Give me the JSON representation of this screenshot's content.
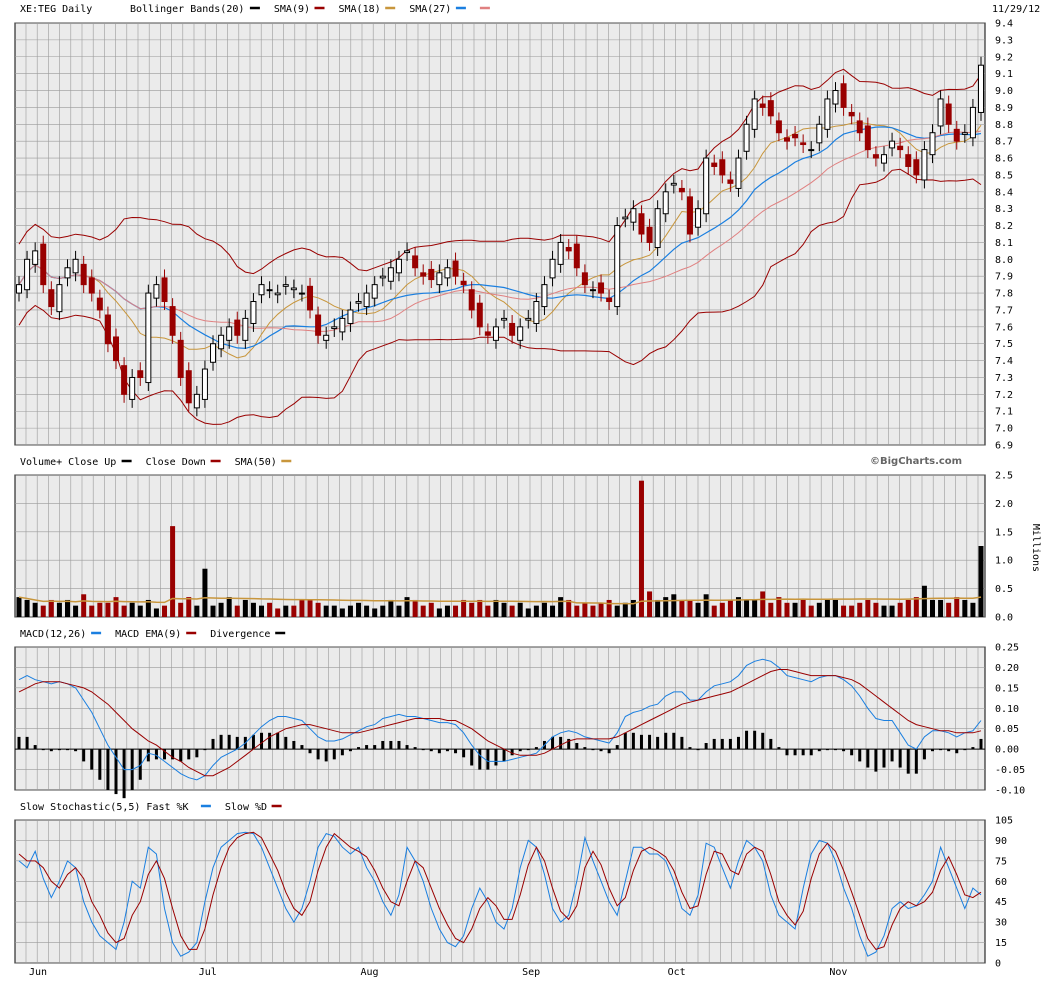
{
  "header": {
    "symbol": "XE:TEG Daily",
    "date": "11/29/12",
    "legend": [
      {
        "label": "Bollinger Bands(20)",
        "color": "#000000"
      },
      {
        "label": "SMA(9)",
        "color": "#990000"
      },
      {
        "label": "SMA(18)",
        "color": "#c8963c"
      },
      {
        "label": "SMA(27)",
        "color": "#1a7fe0"
      },
      {
        "label": "",
        "color": "#e08080"
      }
    ]
  },
  "volume_legend": [
    {
      "label": "Volume+ Close Up",
      "color": "#000000"
    },
    {
      "label": "Close Down",
      "color": "#990000"
    },
    {
      "label": "SMA(50)",
      "color": "#c8963c"
    }
  ],
  "macd_legend": [
    {
      "label": "MACD(12,26)",
      "color": "#1a7fe0"
    },
    {
      "label": "MACD EMA(9)",
      "color": "#990000"
    },
    {
      "label": "Divergence",
      "color": "#000000"
    }
  ],
  "stoch_legend": [
    {
      "label": "Slow Stochastic(5,5)  Fast %K",
      "color": "#1a7fe0"
    },
    {
      "label": "Slow %D",
      "color": "#990000"
    }
  ],
  "watermark": "©BigCharts.com",
  "volume_unit": "Millions",
  "colors": {
    "up": "#000000",
    "down": "#990000",
    "grid": "#9a9a9a",
    "bg": "#ebebeb",
    "band": "#990000",
    "sma9": "#990000",
    "sma18": "#c8963c",
    "sma27": "#1a7fe0",
    "sma4": "#e08080"
  },
  "chart_data": [
    {
      "type": "candlestick",
      "title": "XE:TEG Daily",
      "x_tick_labels": [
        "Jun",
        "Jul",
        "Aug",
        "Sep",
        "Oct",
        "Nov"
      ],
      "x_tick_days": [
        0,
        21,
        41,
        61,
        79,
        99
      ],
      "ylim": [
        6.9,
        9.4
      ],
      "y_ticks": [
        6.9,
        7.0,
        7.1,
        7.2,
        7.3,
        7.4,
        7.5,
        7.6,
        7.7,
        7.8,
        7.9,
        8.0,
        8.1,
        8.2,
        8.3,
        8.4,
        8.5,
        8.6,
        8.7,
        8.8,
        8.9,
        9.0,
        9.1,
        9.2,
        9.3,
        9.4
      ],
      "close": [
        7.85,
        8.0,
        8.05,
        7.85,
        7.72,
        7.85,
        7.95,
        8.0,
        7.85,
        7.8,
        7.7,
        7.5,
        7.4,
        7.2,
        7.3,
        7.3,
        7.8,
        7.85,
        7.75,
        7.55,
        7.3,
        7.15,
        7.2,
        7.35,
        7.5,
        7.55,
        7.6,
        7.55,
        7.65,
        7.75,
        7.85,
        7.82,
        7.8,
        7.85,
        7.83,
        7.8,
        7.7,
        7.55,
        7.55,
        7.6,
        7.65,
        7.7,
        7.75,
        7.8,
        7.85,
        7.9,
        7.95,
        8.0,
        8.05,
        7.95,
        7.9,
        7.88,
        7.92,
        7.95,
        7.9,
        7.85,
        7.7,
        7.6,
        7.55,
        7.6,
        7.65,
        7.55,
        7.6,
        7.65,
        7.75,
        7.85,
        8.0,
        8.1,
        8.05,
        7.95,
        7.85,
        7.82,
        7.8,
        7.75,
        8.2,
        8.25,
        8.3,
        8.15,
        8.1,
        8.3,
        8.4,
        8.45,
        8.4,
        8.15,
        8.3,
        8.6,
        8.55,
        8.5,
        8.45,
        8.6,
        8.8,
        8.95,
        8.9,
        8.85,
        8.75,
        8.7,
        8.72,
        8.68,
        8.65,
        8.8,
        8.95,
        9.0,
        8.9,
        8.85,
        8.75,
        8.65,
        8.6,
        8.62,
        8.7,
        8.65,
        8.55,
        8.5,
        8.65,
        8.75,
        8.95,
        8.8,
        8.7,
        8.75,
        8.9,
        9.15
      ],
      "bollinger_upper_range": [
        8.1,
        9.1
      ],
      "bollinger_lower_range": [
        7.0,
        8.45
      ]
    },
    {
      "type": "bar",
      "title": "Volume",
      "ylabel": "Millions",
      "ylim": [
        0,
        2.5
      ],
      "y_ticks": [
        0.0,
        0.5,
        1.0,
        1.5,
        2.0,
        2.5
      ],
      "volume": [
        0.35,
        0.3,
        0.25,
        0.2,
        0.3,
        0.25,
        0.3,
        0.2,
        0.4,
        0.2,
        0.25,
        0.25,
        0.35,
        0.2,
        0.25,
        0.2,
        0.3,
        0.15,
        0.2,
        1.6,
        0.25,
        0.35,
        0.2,
        0.85,
        0.2,
        0.25,
        0.35,
        0.2,
        0.3,
        0.25,
        0.2,
        0.25,
        0.15,
        0.2,
        0.2,
        0.3,
        0.3,
        0.25,
        0.2,
        0.2,
        0.15,
        0.2,
        0.25,
        0.2,
        0.15,
        0.2,
        0.3,
        0.2,
        0.35,
        0.3,
        0.2,
        0.25,
        0.15,
        0.2,
        0.2,
        0.3,
        0.25,
        0.3,
        0.2,
        0.3,
        0.25,
        0.2,
        0.25,
        0.15,
        0.2,
        0.25,
        0.2,
        0.35,
        0.3,
        0.2,
        0.25,
        0.2,
        0.25,
        0.3,
        0.2,
        0.25,
        0.3,
        2.4,
        0.45,
        0.3,
        0.35,
        0.4,
        0.3,
        0.3,
        0.25,
        0.4,
        0.2,
        0.25,
        0.3,
        0.35,
        0.3,
        0.3,
        0.45,
        0.25,
        0.35,
        0.25,
        0.25,
        0.3,
        0.2,
        0.25,
        0.3,
        0.3,
        0.2,
        0.2,
        0.25,
        0.3,
        0.25,
        0.2,
        0.2,
        0.25,
        0.3,
        0.35,
        0.55,
        0.3,
        0.3,
        0.25,
        0.35,
        0.3,
        0.25,
        1.25
      ]
    },
    {
      "type": "line",
      "title": "MACD(12,26)",
      "ylim": [
        -0.1,
        0.25
      ],
      "y_ticks": [
        -0.1,
        -0.05,
        0.0,
        0.05,
        0.1,
        0.15,
        0.2,
        0.25
      ],
      "series": [
        {
          "name": "MACD(12,26)",
          "values": [
            0.17,
            0.18,
            0.17,
            0.165,
            0.16,
            0.165,
            0.16,
            0.15,
            0.12,
            0.09,
            0.05,
            0.01,
            -0.02,
            -0.05,
            -0.05,
            -0.04,
            -0.01,
            -0.015,
            -0.03,
            -0.045,
            -0.06,
            -0.07,
            -0.075,
            -0.065,
            -0.04,
            -0.02,
            -0.01,
            0.0,
            0.015,
            0.035,
            0.055,
            0.07,
            0.08,
            0.08,
            0.075,
            0.07,
            0.05,
            0.03,
            0.02,
            0.02,
            0.025,
            0.035,
            0.045,
            0.055,
            0.06,
            0.075,
            0.08,
            0.085,
            0.08,
            0.08,
            0.075,
            0.07,
            0.065,
            0.065,
            0.06,
            0.04,
            0.01,
            -0.015,
            -0.03,
            -0.03,
            -0.03,
            -0.025,
            -0.02,
            -0.015,
            -0.01,
            0.01,
            0.03,
            0.04,
            0.045,
            0.04,
            0.03,
            0.025,
            0.02,
            0.015,
            0.04,
            0.08,
            0.09,
            0.095,
            0.105,
            0.11,
            0.13,
            0.14,
            0.14,
            0.12,
            0.12,
            0.14,
            0.155,
            0.16,
            0.165,
            0.18,
            0.205,
            0.215,
            0.22,
            0.215,
            0.2,
            0.18,
            0.175,
            0.17,
            0.165,
            0.175,
            0.18,
            0.18,
            0.17,
            0.155,
            0.13,
            0.1,
            0.075,
            0.07,
            0.07,
            0.04,
            0.01,
            0.0,
            0.03,
            0.045,
            0.045,
            0.04,
            0.03,
            0.04,
            0.045,
            0.07
          ]
        },
        {
          "name": "MACD EMA(9)",
          "values": [
            0.14,
            0.15,
            0.16,
            0.165,
            0.165,
            0.165,
            0.16,
            0.155,
            0.15,
            0.14,
            0.125,
            0.11,
            0.09,
            0.07,
            0.05,
            0.035,
            0.02,
            0.01,
            -0.005,
            -0.02,
            -0.03,
            -0.045,
            -0.055,
            -0.065,
            -0.065,
            -0.055,
            -0.045,
            -0.03,
            -0.015,
            0.0,
            0.015,
            0.03,
            0.04,
            0.05,
            0.055,
            0.06,
            0.06,
            0.055,
            0.05,
            0.045,
            0.04,
            0.04,
            0.04,
            0.045,
            0.05,
            0.055,
            0.06,
            0.065,
            0.07,
            0.075,
            0.075,
            0.075,
            0.075,
            0.07,
            0.07,
            0.06,
            0.05,
            0.035,
            0.02,
            0.01,
            0.0,
            -0.01,
            -0.015,
            -0.015,
            -0.015,
            -0.01,
            0.0,
            0.01,
            0.02,
            0.025,
            0.025,
            0.025,
            0.025,
            0.025,
            0.03,
            0.04,
            0.05,
            0.06,
            0.07,
            0.08,
            0.09,
            0.1,
            0.11,
            0.115,
            0.12,
            0.125,
            0.13,
            0.135,
            0.14,
            0.15,
            0.16,
            0.17,
            0.18,
            0.19,
            0.195,
            0.195,
            0.19,
            0.185,
            0.18,
            0.18,
            0.18,
            0.18,
            0.175,
            0.17,
            0.16,
            0.145,
            0.13,
            0.115,
            0.1,
            0.085,
            0.07,
            0.06,
            0.055,
            0.05,
            0.045,
            0.045,
            0.04,
            0.04,
            0.04,
            0.045
          ]
        },
        {
          "name": "Divergence",
          "values": [
            0.03,
            0.03,
            0.01,
            0.0,
            -0.005,
            0.0,
            0.0,
            -0.005,
            -0.03,
            -0.05,
            -0.075,
            -0.1,
            -0.11,
            -0.12,
            -0.1,
            -0.075,
            -0.03,
            -0.025,
            -0.025,
            -0.025,
            -0.03,
            -0.025,
            -0.02,
            0.0,
            0.025,
            0.035,
            0.035,
            0.03,
            0.03,
            0.035,
            0.04,
            0.04,
            0.04,
            0.03,
            0.02,
            0.01,
            -0.01,
            -0.025,
            -0.03,
            -0.025,
            -0.015,
            -0.005,
            0.005,
            0.01,
            0.01,
            0.02,
            0.02,
            0.02,
            0.01,
            0.005,
            0.0,
            -0.005,
            -0.01,
            -0.005,
            -0.01,
            -0.02,
            -0.04,
            -0.05,
            -0.05,
            -0.04,
            -0.03,
            -0.015,
            -0.005,
            0.0,
            0.005,
            0.02,
            0.03,
            0.03,
            0.025,
            0.015,
            0.005,
            0.0,
            -0.005,
            -0.01,
            0.01,
            0.04,
            0.04,
            0.035,
            0.035,
            0.03,
            0.04,
            0.04,
            0.03,
            0.005,
            0.0,
            0.015,
            0.025,
            0.025,
            0.025,
            0.03,
            0.045,
            0.045,
            0.04,
            0.025,
            0.005,
            -0.015,
            -0.015,
            -0.015,
            -0.015,
            -0.005,
            0.0,
            0.0,
            -0.005,
            -0.015,
            -0.03,
            -0.045,
            -0.055,
            -0.045,
            -0.03,
            -0.045,
            -0.06,
            -0.06,
            -0.025,
            -0.005,
            0.0,
            -0.005,
            -0.01,
            0.0,
            0.005,
            0.025
          ]
        }
      ]
    },
    {
      "type": "line",
      "title": "Slow Stochastic(5,5)",
      "ylim": [
        0,
        105
      ],
      "y_ticks": [
        0,
        15,
        30,
        45,
        60,
        75,
        90,
        105
      ],
      "series": [
        {
          "name": "Fast %K",
          "values": [
            75,
            70,
            82,
            62,
            48,
            60,
            75,
            70,
            45,
            30,
            20,
            15,
            10,
            30,
            60,
            55,
            85,
            80,
            40,
            15,
            5,
            8,
            15,
            45,
            70,
            85,
            90,
            95,
            96,
            95,
            85,
            70,
            55,
            40,
            30,
            40,
            60,
            85,
            95,
            93,
            85,
            80,
            85,
            70,
            60,
            45,
            35,
            50,
            85,
            75,
            60,
            40,
            25,
            15,
            12,
            20,
            40,
            55,
            45,
            30,
            25,
            40,
            70,
            90,
            85,
            65,
            40,
            30,
            35,
            60,
            92,
            75,
            60,
            45,
            35,
            60,
            85,
            85,
            80,
            80,
            75,
            60,
            40,
            35,
            50,
            88,
            85,
            70,
            55,
            75,
            90,
            85,
            75,
            50,
            35,
            30,
            25,
            55,
            80,
            90,
            88,
            75,
            55,
            40,
            20,
            5,
            8,
            20,
            40,
            45,
            40,
            42,
            50,
            60,
            85,
            70,
            55,
            40,
            55,
            50
          ]
        },
        {
          "name": "Slow %D",
          "values": [
            80,
            75,
            75,
            70,
            60,
            55,
            65,
            70,
            62,
            45,
            35,
            22,
            15,
            18,
            35,
            45,
            65,
            75,
            62,
            40,
            20,
            10,
            10,
            25,
            50,
            70,
            85,
            92,
            95,
            96,
            92,
            80,
            68,
            52,
            40,
            35,
            45,
            68,
            85,
            95,
            90,
            85,
            82,
            78,
            68,
            55,
            45,
            42,
            60,
            75,
            70,
            55,
            40,
            28,
            18,
            15,
            25,
            40,
            48,
            42,
            32,
            32,
            50,
            72,
            85,
            75,
            55,
            38,
            32,
            42,
            70,
            82,
            72,
            55,
            42,
            48,
            68,
            82,
            85,
            82,
            78,
            68,
            52,
            40,
            42,
            65,
            82,
            80,
            68,
            65,
            80,
            85,
            82,
            65,
            45,
            35,
            28,
            38,
            62,
            80,
            88,
            82,
            68,
            52,
            35,
            18,
            10,
            12,
            28,
            40,
            45,
            42,
            45,
            52,
            68,
            78,
            65,
            50,
            48,
            52
          ]
        }
      ]
    }
  ]
}
